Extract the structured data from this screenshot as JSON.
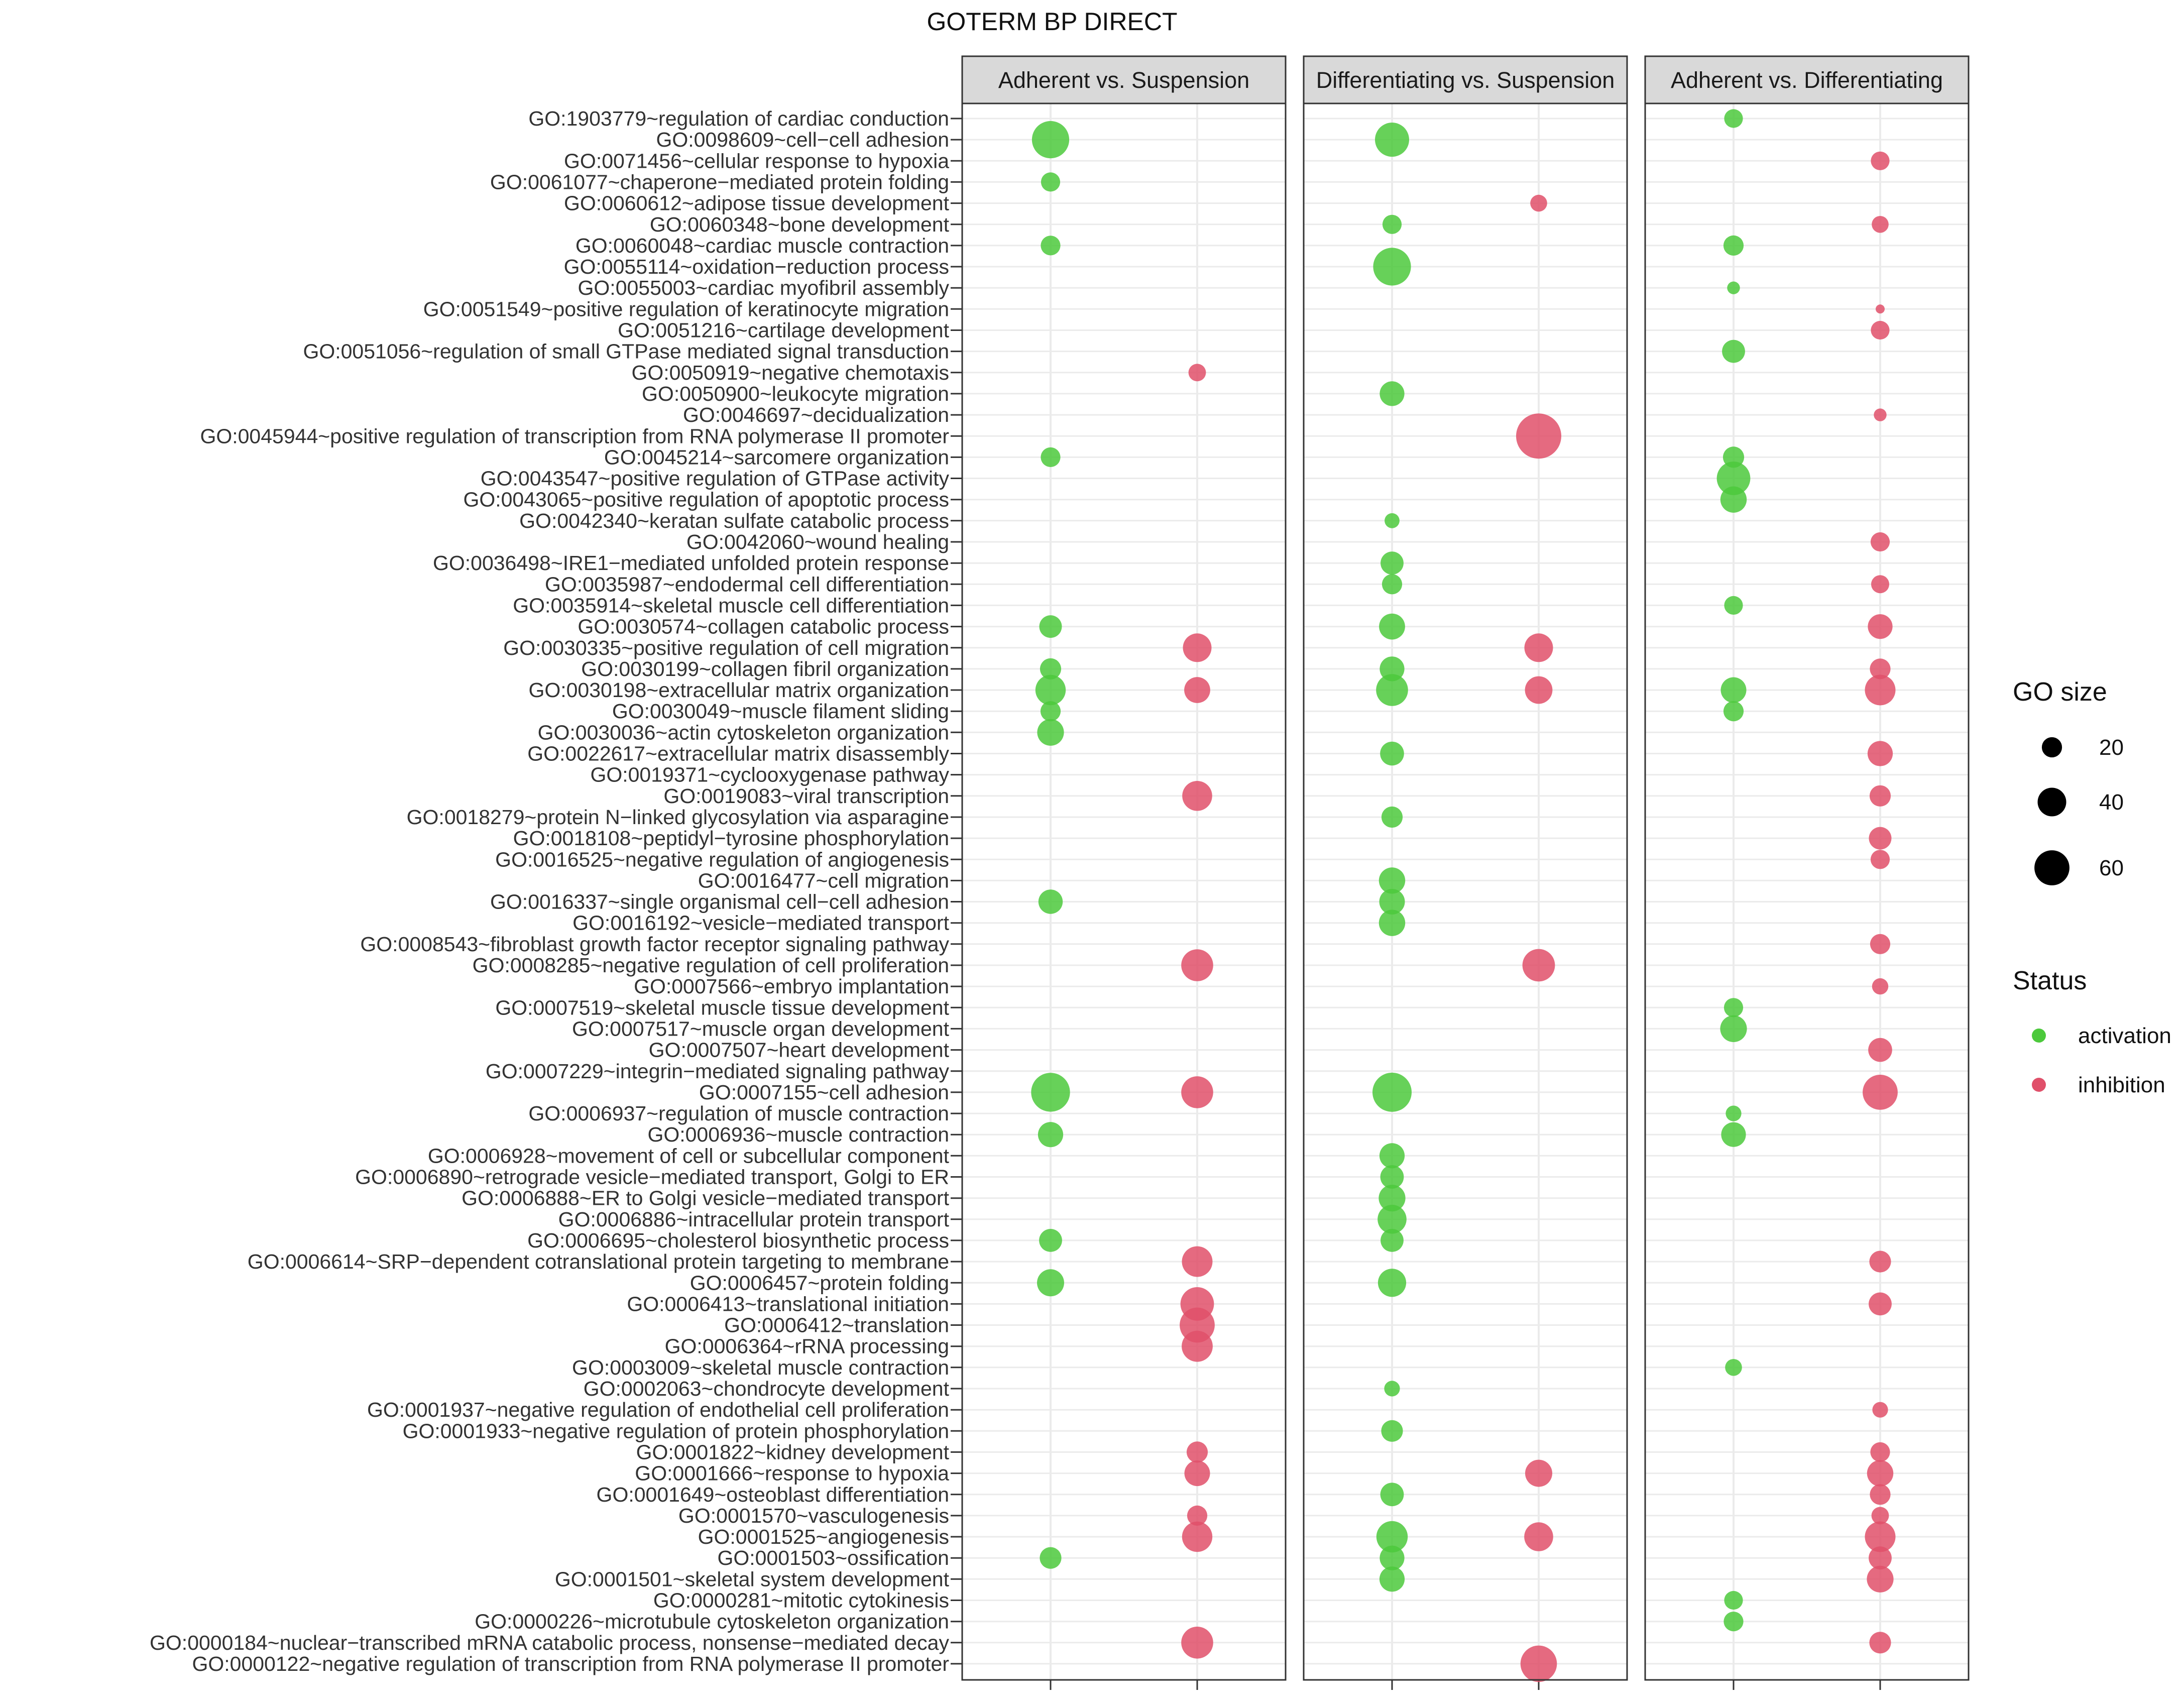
{
  "chart_data": {
    "type": "scatter",
    "title": "GOTERM BP DIRECT",
    "panels": [
      "Adherent vs. Suspension",
      "Differentiating vs. Suspension",
      "Adherent vs. Differentiating"
    ],
    "status_levels": [
      "activation",
      "inhibition"
    ],
    "colors": {
      "activation": "#4cc93c",
      "inhibition": "#e0506a"
    },
    "terms": [
      "GO:1903779~regulation of cardiac conduction",
      "GO:0098609~cell−cell adhesion",
      "GO:0071456~cellular response to hypoxia",
      "GO:0061077~chaperone−mediated protein folding",
      "GO:0060612~adipose tissue development",
      "GO:0060348~bone development",
      "GO:0060048~cardiac muscle contraction",
      "GO:0055114~oxidation−reduction process",
      "GO:0055003~cardiac myofibril assembly",
      "GO:0051549~positive regulation of keratinocyte migration",
      "GO:0051216~cartilage development",
      "GO:0051056~regulation of small GTPase mediated signal transduction",
      "GO:0050919~negative chemotaxis",
      "GO:0050900~leukocyte migration",
      "GO:0046697~decidualization",
      "GO:0045944~positive regulation of transcription from RNA polymerase II promoter",
      "GO:0045214~sarcomere organization",
      "GO:0043547~positive regulation of GTPase activity",
      "GO:0043065~positive regulation of apoptotic process",
      "GO:0042340~keratan sulfate catabolic process",
      "GO:0042060~wound healing",
      "GO:0036498~IRE1−mediated unfolded protein response",
      "GO:0035987~endodermal cell differentiation",
      "GO:0035914~skeletal muscle cell differentiation",
      "GO:0030574~collagen catabolic process",
      "GO:0030335~positive regulation of cell migration",
      "GO:0030199~collagen fibril organization",
      "GO:0030198~extracellular matrix organization",
      "GO:0030049~muscle filament sliding",
      "GO:0030036~actin cytoskeleton organization",
      "GO:0022617~extracellular matrix disassembly",
      "GO:0019371~cyclooxygenase pathway",
      "GO:0019083~viral transcription",
      "GO:0018279~protein N−linked glycosylation via asparagine",
      "GO:0018108~peptidyl−tyrosine phosphorylation",
      "GO:0016525~negative regulation of angiogenesis",
      "GO:0016477~cell migration",
      "GO:0016337~single organismal cell−cell adhesion",
      "GO:0016192~vesicle−mediated transport",
      "GO:0008543~fibroblast growth factor receptor signaling pathway",
      "GO:0008285~negative regulation of cell proliferation",
      "GO:0007566~embryo implantation",
      "GO:0007519~skeletal muscle tissue development",
      "GO:0007517~muscle organ development",
      "GO:0007507~heart development",
      "GO:0007229~integrin−mediated signaling pathway",
      "GO:0007155~cell adhesion",
      "GO:0006937~regulation of muscle contraction",
      "GO:0006936~muscle contraction",
      "GO:0006928~movement of cell or subcellular component",
      "GO:0006890~retrograde vesicle−mediated transport, Golgi to ER",
      "GO:0006888~ER to Golgi vesicle−mediated transport",
      "GO:0006886~intracellular protein transport",
      "GO:0006695~cholesterol biosynthetic process",
      "GO:0006614~SRP−dependent cotranslational protein targeting to membrane",
      "GO:0006457~protein folding",
      "GO:0006413~translational initiation",
      "GO:0006412~translation",
      "GO:0006364~rRNA processing",
      "GO:0003009~skeletal muscle contraction",
      "GO:0002063~chondrocyte development",
      "GO:0001937~negative regulation of endothelial cell proliferation",
      "GO:0001933~negative regulation of protein phosphorylation",
      "GO:0001822~kidney development",
      "GO:0001666~response to hypoxia",
      "GO:0001649~osteoblast differentiation",
      "GO:0001570~vasculogenesis",
      "GO:0001525~angiogenesis",
      "GO:0001503~ossification",
      "GO:0001501~skeletal system development",
      "GO:0000281~mitotic cytokinesis",
      "GO:0000226~microtubule cytoskeleton organization",
      "GO:0000184~nuclear−transcribed mRNA catabolic process, nonsense−mediated decay",
      "GO:0000122~negative regulation of transcription from RNA polymerase II promoter"
    ],
    "points": [
      [
        0,
        1,
        "activation",
        68
      ],
      [
        0,
        3,
        "activation",
        18
      ],
      [
        0,
        6,
        "activation",
        19
      ],
      [
        0,
        16,
        "activation",
        19
      ],
      [
        0,
        24,
        "activation",
        25
      ],
      [
        0,
        26,
        "activation",
        22
      ],
      [
        0,
        27,
        "activation",
        45
      ],
      [
        0,
        28,
        "activation",
        20
      ],
      [
        0,
        29,
        "activation",
        35
      ],
      [
        0,
        37,
        "activation",
        29
      ],
      [
        0,
        46,
        "activation",
        74
      ],
      [
        0,
        48,
        "activation",
        31
      ],
      [
        0,
        53,
        "activation",
        26
      ],
      [
        0,
        55,
        "activation",
        36
      ],
      [
        0,
        68,
        "activation",
        23
      ],
      [
        0,
        12,
        "inhibition",
        15
      ],
      [
        0,
        25,
        "inhibition",
        40
      ],
      [
        0,
        27,
        "inhibition",
        33
      ],
      [
        0,
        32,
        "inhibition",
        44
      ],
      [
        0,
        40,
        "inhibition",
        50
      ],
      [
        0,
        46,
        "inhibition",
        50
      ],
      [
        0,
        54,
        "inhibition",
        46
      ],
      [
        0,
        56,
        "inhibition",
        55
      ],
      [
        0,
        57,
        "inhibition",
        60
      ],
      [
        0,
        58,
        "inhibition",
        47
      ],
      [
        0,
        63,
        "inhibition",
        22
      ],
      [
        0,
        64,
        "inhibition",
        32
      ],
      [
        0,
        66,
        "inhibition",
        20
      ],
      [
        0,
        67,
        "inhibition",
        45
      ],
      [
        0,
        72,
        "inhibition",
        50
      ],
      [
        1,
        1,
        "activation",
        57
      ],
      [
        1,
        5,
        "activation",
        18
      ],
      [
        1,
        7,
        "activation",
        70
      ],
      [
        1,
        13,
        "activation",
        30
      ],
      [
        1,
        19,
        "activation",
        11
      ],
      [
        1,
        21,
        "activation",
        26
      ],
      [
        1,
        22,
        "activation",
        20
      ],
      [
        1,
        24,
        "activation",
        33
      ],
      [
        1,
        26,
        "activation",
        30
      ],
      [
        1,
        27,
        "activation",
        50
      ],
      [
        1,
        30,
        "activation",
        28
      ],
      [
        1,
        33,
        "activation",
        22
      ],
      [
        1,
        36,
        "activation",
        34
      ],
      [
        1,
        37,
        "activation",
        32
      ],
      [
        1,
        38,
        "activation",
        34
      ],
      [
        1,
        46,
        "activation",
        75
      ],
      [
        1,
        49,
        "activation",
        31
      ],
      [
        1,
        50,
        "activation",
        27
      ],
      [
        1,
        51,
        "activation",
        35
      ],
      [
        1,
        52,
        "activation",
        41
      ],
      [
        1,
        53,
        "activation",
        26
      ],
      [
        1,
        55,
        "activation",
        39
      ],
      [
        1,
        60,
        "activation",
        12
      ],
      [
        1,
        62,
        "activation",
        23
      ],
      [
        1,
        65,
        "activation",
        27
      ],
      [
        1,
        67,
        "activation",
        48
      ],
      [
        1,
        68,
        "activation",
        30
      ],
      [
        1,
        69,
        "activation",
        31
      ],
      [
        1,
        4,
        "inhibition",
        14
      ],
      [
        1,
        15,
        "inhibition",
        100
      ],
      [
        1,
        25,
        "inhibition",
        40
      ],
      [
        1,
        27,
        "inhibition",
        37
      ],
      [
        1,
        40,
        "inhibition",
        52
      ],
      [
        1,
        64,
        "inhibition",
        36
      ],
      [
        1,
        67,
        "inhibition",
        41
      ],
      [
        1,
        73,
        "inhibition",
        65
      ],
      [
        2,
        0,
        "activation",
        17
      ],
      [
        2,
        6,
        "activation",
        20
      ],
      [
        2,
        8,
        "activation",
        8
      ],
      [
        2,
        11,
        "activation",
        26
      ],
      [
        2,
        16,
        "activation",
        22
      ],
      [
        2,
        17,
        "activation",
        55
      ],
      [
        2,
        18,
        "activation",
        34
      ],
      [
        2,
        23,
        "activation",
        17
      ],
      [
        2,
        27,
        "activation",
        32
      ],
      [
        2,
        28,
        "activation",
        20
      ],
      [
        2,
        42,
        "activation",
        18
      ],
      [
        2,
        43,
        "activation",
        35
      ],
      [
        2,
        47,
        "activation",
        12
      ],
      [
        2,
        48,
        "activation",
        30
      ],
      [
        2,
        59,
        "activation",
        14
      ],
      [
        2,
        70,
        "activation",
        17
      ],
      [
        2,
        71,
        "activation",
        19
      ],
      [
        2,
        2,
        "inhibition",
        17
      ],
      [
        2,
        5,
        "inhibition",
        14
      ],
      [
        2,
        9,
        "inhibition",
        4
      ],
      [
        2,
        10,
        "inhibition",
        17
      ],
      [
        2,
        14,
        "inhibition",
        8
      ],
      [
        2,
        20,
        "inhibition",
        18
      ],
      [
        2,
        22,
        "inhibition",
        16
      ],
      [
        2,
        24,
        "inhibition",
        30
      ],
      [
        2,
        26,
        "inhibition",
        21
      ],
      [
        2,
        27,
        "inhibition",
        46
      ],
      [
        2,
        30,
        "inhibition",
        31
      ],
      [
        2,
        32,
        "inhibition",
        22
      ],
      [
        2,
        34,
        "inhibition",
        25
      ],
      [
        2,
        35,
        "inhibition",
        18
      ],
      [
        2,
        39,
        "inhibition",
        20
      ],
      [
        2,
        41,
        "inhibition",
        13
      ],
      [
        2,
        44,
        "inhibition",
        28
      ],
      [
        2,
        46,
        "inhibition",
        60
      ],
      [
        2,
        54,
        "inhibition",
        23
      ],
      [
        2,
        56,
        "inhibition",
        26
      ],
      [
        2,
        61,
        "inhibition",
        12
      ],
      [
        2,
        63,
        "inhibition",
        19
      ],
      [
        2,
        64,
        "inhibition",
        34
      ],
      [
        2,
        65,
        "inhibition",
        21
      ],
      [
        2,
        66,
        "inhibition",
        15
      ],
      [
        2,
        67,
        "inhibition",
        46
      ],
      [
        2,
        68,
        "inhibition",
        26
      ],
      [
        2,
        69,
        "inhibition",
        35
      ],
      [
        2,
        72,
        "inhibition",
        23
      ]
    ],
    "point_columns": [
      "panel_index",
      "term_index",
      "status",
      "go_size"
    ],
    "legend": {
      "size_title": "GO size",
      "size_values": [
        20,
        40,
        60
      ],
      "size_labels": [
        "20",
        "40",
        "60"
      ],
      "status_title": "Status",
      "status_labels": [
        "activation",
        "inhibition"
      ]
    },
    "xlabel": "",
    "ylabel": "",
    "grid": true,
    "legend_position": "right"
  }
}
